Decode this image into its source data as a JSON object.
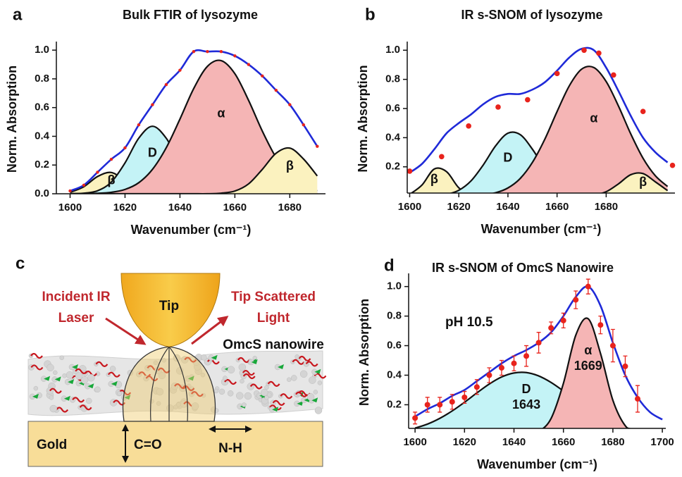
{
  "chart_data": [
    {
      "type": "line",
      "panel_label": "a",
      "title": "Bulk FTIR of lysozyme",
      "xlabel": "Wavenumber (cm⁻¹)",
      "ylabel": "Norm. Absorption",
      "xlim": [
        1595,
        1693
      ],
      "xticks": [
        1600,
        1620,
        1640,
        1660,
        1680
      ],
      "ylim": [
        0,
        1.04
      ],
      "yticks": [
        {
          "value": 0,
          "label": "0.0"
        },
        0.2,
        0.4,
        0.6,
        0.8,
        {
          "value": 1,
          "label": "1.0"
        }
      ],
      "x": [
        1600,
        1605,
        1610,
        1615,
        1620,
        1625,
        1630,
        1635,
        1640,
        1645,
        1650,
        1655,
        1660,
        1665,
        1670,
        1675,
        1680,
        1685,
        1690
      ],
      "series": [
        {
          "kind": "band",
          "label": "β",
          "fill": "#fbf2bf",
          "color": "#111111",
          "values": [
            0.01,
            0.049,
            0.12,
            0.148,
            0.091,
            0.028,
            0.004,
            0,
            0,
            0,
            0,
            0,
            0,
            0,
            0,
            0,
            0,
            0,
            0
          ]
        },
        {
          "kind": "band",
          "label": "D",
          "fill": "#c4f3f6",
          "color": "#111111",
          "values": [
            0,
            0.004,
            0.021,
            0.081,
            0.215,
            0.387,
            0.47,
            0.387,
            0.215,
            0.081,
            0.021,
            0.004,
            0,
            0,
            0,
            0,
            0,
            0,
            0
          ]
        },
        {
          "kind": "band",
          "fill": "#c4f3f6",
          "color": "#111111",
          "values": [
            0,
            0,
            0,
            0,
            0,
            0,
            0.003,
            0.028,
            0.102,
            0.137,
            0.068,
            0.012,
            0,
            0,
            0,
            0,
            0,
            0,
            0
          ]
        },
        {
          "kind": "band",
          "label": "α",
          "fill": "#f5b5b5",
          "color": "#111111",
          "values": [
            0,
            0.001,
            0.003,
            0.01,
            0.03,
            0.077,
            0.17,
            0.32,
            0.52,
            0.732,
            0.887,
            0.927,
            0.836,
            0.65,
            0.436,
            0.252,
            0.126,
            0.054,
            0.02
          ]
        },
        {
          "kind": "band",
          "label": "β",
          "fill": "#fbf2bf",
          "color": "#111111",
          "values": [
            0,
            0,
            0,
            0,
            0,
            0,
            0,
            0,
            0,
            0,
            0,
            0.004,
            0.019,
            0.069,
            0.17,
            0.282,
            0.318,
            0.242,
            0.124
          ]
        },
        {
          "kind": "fit",
          "color": "#1f2ad8",
          "values": [
            0.02,
            0.06,
            0.15,
            0.24,
            0.32,
            0.48,
            0.62,
            0.76,
            0.86,
            0.99,
            0.99,
            0.99,
            0.96,
            0.9,
            0.82,
            0.72,
            0.62,
            0.48,
            0.33
          ]
        },
        {
          "kind": "points",
          "color": "#e8231c",
          "values": [
            0.02,
            0.06,
            0.15,
            0.24,
            0.32,
            0.48,
            0.62,
            0.76,
            0.86,
            0.99,
            0.99,
            0.99,
            0.96,
            0.9,
            0.82,
            0.72,
            0.62,
            0.48,
            0.33
          ]
        }
      ]
    },
    {
      "type": "line",
      "panel_label": "b",
      "title": "IR s-SNOM of lysozyme",
      "xlabel": "Wavenumber (cm⁻¹)",
      "ylabel": "Norm. Absorption",
      "xlim": [
        1599,
        1708
      ],
      "xticks": [
        1600,
        1620,
        1640,
        1660,
        1680
      ],
      "ylim": [
        0.02,
        1.04
      ],
      "yticks": [
        0.2,
        0.4,
        0.6,
        0.8,
        {
          "value": 1,
          "label": "1.0"
        }
      ],
      "x": [
        1600,
        1605,
        1610,
        1615,
        1620,
        1625,
        1630,
        1635,
        1640,
        1645,
        1650,
        1655,
        1660,
        1665,
        1670,
        1675,
        1680,
        1685,
        1690,
        1695,
        1700,
        1705
      ],
      "series": [
        {
          "kind": "band",
          "label": "β",
          "fill": "#fbf2bf",
          "color": "#111111",
          "values": [
            0.011,
            0.075,
            0.185,
            0.167,
            0.056,
            0.007,
            0,
            0,
            0,
            0,
            0,
            0,
            0,
            0,
            0,
            0,
            0,
            0,
            0,
            0,
            0,
            0
          ]
        },
        {
          "kind": "band",
          "label": "D",
          "fill": "#c4f3f6",
          "color": "#111111",
          "values": [
            0,
            0,
            0.003,
            0.011,
            0.039,
            0.104,
            0.214,
            0.344,
            0.431,
            0.421,
            0.32,
            0.189,
            0.087,
            0.031,
            0.009,
            0.002,
            0,
            0,
            0,
            0,
            0,
            0
          ]
        },
        {
          "kind": "band",
          "label": "α",
          "fill": "#f5b5b5",
          "color": "#111111",
          "values": [
            0,
            0,
            0,
            0,
            0.001,
            0.002,
            0.008,
            0.022,
            0.055,
            0.12,
            0.231,
            0.389,
            0.579,
            0.756,
            0.87,
            0.881,
            0.785,
            0.617,
            0.426,
            0.259,
            0.139,
            0.065
          ]
        },
        {
          "kind": "band",
          "label": "β",
          "fill": "#fbf2bf",
          "color": "#111111",
          "values": [
            0,
            0,
            0,
            0,
            0,
            0,
            0,
            0,
            0,
            0,
            0,
            0,
            0,
            0,
            0.001,
            0.006,
            0.029,
            0.083,
            0.146,
            0.154,
            0.097,
            0.037
          ]
        },
        {
          "kind": "fit",
          "color": "#1f2ad8",
          "values": [
            0.16,
            0.22,
            0.32,
            0.43,
            0.5,
            0.56,
            0.63,
            0.68,
            0.7,
            0.7,
            0.73,
            0.78,
            0.86,
            0.95,
            1.01,
            1.0,
            0.88,
            0.72,
            0.55,
            0.4,
            0.3,
            0.23
          ]
        },
        {
          "kind": "points",
          "color": "#e8231c",
          "x": [
            1600,
            1613,
            1624,
            1636,
            1648,
            1660,
            1671,
            1677,
            1683,
            1695,
            1707
          ],
          "values": [
            0.17,
            0.27,
            0.48,
            0.61,
            0.66,
            0.84,
            1.0,
            0.98,
            0.83,
            0.58,
            0.21
          ]
        }
      ]
    },
    {
      "type": "line",
      "panel_label": "d",
      "title": "IR s-SNOM of OmcS Nanowire",
      "xlabel": "Wavenumber (cm⁻¹)",
      "ylabel": "Norm. Absorption",
      "annotations": [
        "pH 10.5"
      ],
      "xlim": [
        1597.4,
        1701.4
      ],
      "xticks": [
        1600,
        1620,
        1640,
        1660,
        1680,
        1700
      ],
      "ylim": [
        0.04,
        1.07
      ],
      "yticks": [
        0.2,
        0.4,
        0.6,
        0.8,
        {
          "value": 1,
          "label": "1.0"
        }
      ],
      "x": [
        1600,
        1605,
        1610,
        1615,
        1620,
        1625,
        1630,
        1635,
        1640,
        1645,
        1650,
        1655,
        1660,
        1665,
        1670,
        1675,
        1680,
        1685,
        1690,
        1695,
        1700
      ],
      "series": [
        {
          "kind": "band",
          "label": "D",
          "sublabel": "1643",
          "fill": "#c4f3f6",
          "color": "#111111",
          "values": [
            0.042,
            0.069,
            0.108,
            0.158,
            0.217,
            0.28,
            0.34,
            0.388,
            0.415,
            0.418,
            0.395,
            0.351,
            0.293,
            0.229,
            0.169,
            0.117,
            0.076,
            0.046,
            0.027,
            0.014,
            0.007
          ]
        },
        {
          "kind": "band",
          "label": "α",
          "sublabel": "1669",
          "fill": "#f5b5b5",
          "color": "#111111",
          "values": [
            0,
            0,
            0,
            0,
            0,
            0,
            0,
            0,
            0,
            0.002,
            0.02,
            0.107,
            0.345,
            0.671,
            0.782,
            0.547,
            0.23,
            0.058,
            0.009,
            0,
            0
          ]
        },
        {
          "kind": "fit",
          "color": "#1f2ad8",
          "values": [
            0.12,
            0.17,
            0.21,
            0.26,
            0.3,
            0.36,
            0.42,
            0.48,
            0.53,
            0.57,
            0.62,
            0.69,
            0.8,
            0.93,
            1.0,
            0.87,
            0.62,
            0.4,
            0.25,
            0.15,
            0.1
          ]
        },
        {
          "kind": "points",
          "color": "#e8231c",
          "x": [
            1600,
            1605,
            1610,
            1615,
            1620,
            1625,
            1630,
            1635,
            1640,
            1645,
            1650,
            1655,
            1660,
            1665,
            1670,
            1675,
            1680,
            1685,
            1690
          ],
          "values": [
            0.11,
            0.2,
            0.2,
            0.22,
            0.25,
            0.32,
            0.4,
            0.45,
            0.48,
            0.53,
            0.62,
            0.72,
            0.77,
            0.91,
            1.0,
            0.74,
            0.6,
            0.46,
            0.24
          ],
          "errors": [
            0.04,
            0.05,
            0.05,
            0.05,
            0.04,
            0.05,
            0.05,
            0.05,
            0.05,
            0.07,
            0.07,
            0.04,
            0.05,
            0.06,
            0.05,
            0.06,
            0.11,
            0.07,
            0.09
          ]
        }
      ]
    }
  ],
  "diagram": {
    "panel_label": "c",
    "incident": [
      "Incident IR",
      "Laser"
    ],
    "tip": "Tip",
    "scattered": [
      "Tip Scattered",
      "Light"
    ],
    "nanowire": "OmcS nanowire",
    "substrate": "Gold",
    "vertical_mode": "C=O",
    "horizontal_mode": "N-H"
  }
}
